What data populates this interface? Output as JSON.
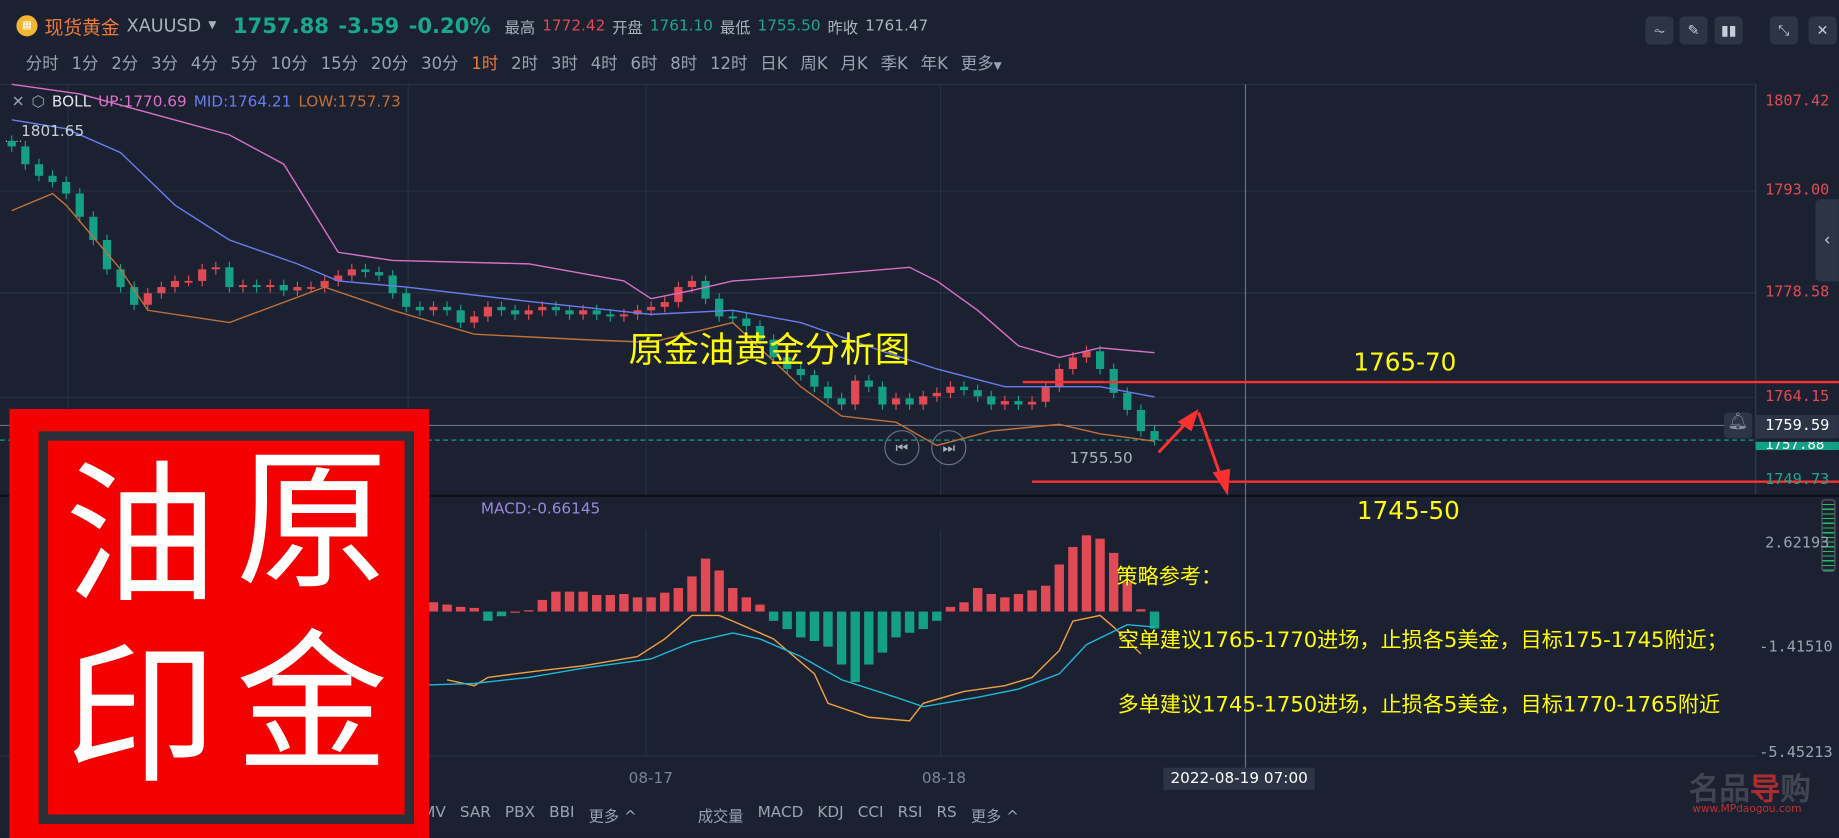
{
  "header": {
    "name": "现货黄金",
    "symbol": "XAUUSD",
    "price": "1757.88",
    "change": "-3.59",
    "change_pct": "-0.20%",
    "high_label": "最高",
    "high": "1772.42",
    "open_label": "开盘",
    "open": "1761.10",
    "low_label": "最低",
    "low": "1755.50",
    "prev_label": "昨收",
    "prev": "1761.47"
  },
  "timeframes": [
    "分时",
    "1分",
    "2分",
    "3分",
    "4分",
    "5分",
    "10分",
    "15分",
    "20分",
    "30分",
    "1时",
    "2时",
    "3时",
    "4时",
    "6时",
    "8时",
    "12时",
    "日K",
    "周K",
    "月K",
    "季K",
    "年K"
  ],
  "timeframe_active": "1时",
  "timeframe_more": "更多",
  "toolbar_icons": [
    "indicator-icon",
    "draw-icon",
    "candle-type-icon",
    "collapse-icon",
    "close-icon"
  ],
  "boll": {
    "name": "BOLL",
    "up": "UP:1770.69",
    "mid": "MID:1764.21",
    "low": "LOW:1757.73"
  },
  "macd_legend": "MACD:-0.66145",
  "price_axis": [
    "1807.42",
    "1793.00",
    "1778.58",
    "1764.15",
    "1749.73"
  ],
  "crosshair_price": "1759.59",
  "last_price_tag": "1757.88",
  "max_label": "1801.65",
  "min_label": "1755.50",
  "macd_axis": [
    "2.62193",
    "-1.41510",
    "-5.45213"
  ],
  "date_axis": [
    "08-17",
    "08-18"
  ],
  "crosshair_date": "2022-08-19 07:00",
  "bottom_main": [
    "MV",
    "SAR",
    "PBX",
    "BBI",
    "更多 ^"
  ],
  "bottom_sub": [
    "成交量",
    "MACD",
    "KDJ",
    "CCI",
    "RSI",
    "RS",
    "更多 ^"
  ],
  "annotations": {
    "title": "原金油黄金分析图",
    "upper": "1765-70",
    "lower": "1745-50",
    "strategy": "策略参考：",
    "short": "空单建议1765-1770进场，止损各5美金，目标175-1745附近；",
    "long": "多单建议1745-1750进场，止损各5美金，目标1770-1765附近"
  },
  "stamp": {
    "chars": [
      "油",
      "原",
      "印",
      "金"
    ]
  },
  "watermark": {
    "name": "名品导购",
    "url": "www.MPdaogou.com"
  },
  "colors": {
    "up": "#e04a55",
    "down": "#14a085",
    "boll_up": "#d970c8",
    "boll_mid": "#6a7cf0",
    "boll_low": "#c0703a",
    "dif": "#f0a040",
    "dea": "#20b8d8",
    "annotation_line": "#ff3030",
    "annotation_text": "#ffff00"
  },
  "chart_data": {
    "type": "candlestick",
    "interval": "1h",
    "closes": [
      1800.9,
      1798.3,
      1796.6,
      1795.7,
      1794.0,
      1790.6,
      1787.2,
      1782.9,
      1780.3,
      1777.7,
      1779.4,
      1780.3,
      1781.2,
      1781.2,
      1782.9,
      1783.2,
      1780.3,
      1780.6,
      1780.3,
      1780.6,
      1779.8,
      1780.3,
      1780.3,
      1781.2,
      1782.0,
      1782.9,
      1782.5,
      1782.0,
      1779.4,
      1777.4,
      1776.9,
      1777.4,
      1776.9,
      1775.1,
      1776.0,
      1777.4,
      1776.9,
      1776.3,
      1776.9,
      1777.4,
      1776.9,
      1776.3,
      1776.9,
      1776.3,
      1776.0,
      1776.3,
      1776.9,
      1777.4,
      1778.1,
      1780.3,
      1781.2,
      1778.6,
      1776.0,
      1775.7,
      1774.6,
      1772.6,
      1770.0,
      1768.3,
      1767.4,
      1765.7,
      1764.0,
      1763.1,
      1766.6,
      1765.7,
      1763.1,
      1764.0,
      1763.1,
      1764.3,
      1764.8,
      1765.7,
      1765.2,
      1764.3,
      1763.1,
      1763.6,
      1763.1,
      1763.5,
      1765.7,
      1768.3,
      1770.0,
      1770.9,
      1768.3,
      1764.8,
      1762.3,
      1759.2,
      1757.88
    ],
    "boll_up": [
      [
        0,
        1810.0
      ],
      [
        5,
        1808.6
      ],
      [
        16,
        1802.6
      ],
      [
        20,
        1798.3
      ],
      [
        24,
        1785.4
      ],
      [
        28,
        1784.2
      ],
      [
        38,
        1783.7
      ],
      [
        45,
        1781.2
      ],
      [
        47,
        1778.6
      ],
      [
        50,
        1779.8
      ],
      [
        53,
        1781.2
      ],
      [
        59,
        1782.0
      ],
      [
        66,
        1783.2
      ],
      [
        68,
        1781.2
      ],
      [
        71,
        1776.9
      ],
      [
        74,
        1771.7
      ],
      [
        77,
        1770.0
      ],
      [
        80,
        1771.4
      ],
      [
        84,
        1770.69
      ]
    ],
    "boll_mid": [
      [
        0,
        1804.8
      ],
      [
        4,
        1803.5
      ],
      [
        8,
        1800.0
      ],
      [
        12,
        1792.3
      ],
      [
        16,
        1787.2
      ],
      [
        21,
        1783.7
      ],
      [
        24,
        1781.2
      ],
      [
        29,
        1780.3
      ],
      [
        38,
        1778.2
      ],
      [
        47,
        1776.3
      ],
      [
        53,
        1776.9
      ],
      [
        58,
        1775.1
      ],
      [
        64,
        1770.9
      ],
      [
        68,
        1768.3
      ],
      [
        73,
        1765.7
      ],
      [
        80,
        1765.7
      ],
      [
        84,
        1764.21
      ]
    ],
    "boll_low": [
      [
        0,
        1791.5
      ],
      [
        3,
        1794.0
      ],
      [
        4,
        1792.3
      ],
      [
        8,
        1782.9
      ],
      [
        10,
        1776.9
      ],
      [
        16,
        1775.1
      ],
      [
        23,
        1780.3
      ],
      [
        28,
        1776.9
      ],
      [
        34,
        1773.4
      ],
      [
        42,
        1772.6
      ],
      [
        47,
        1772.2
      ],
      [
        53,
        1775.1
      ],
      [
        58,
        1765.7
      ],
      [
        61,
        1761.4
      ],
      [
        65,
        1760.5
      ],
      [
        68,
        1757.1
      ],
      [
        72,
        1759.2
      ],
      [
        77,
        1760.2
      ],
      [
        80,
        1758.8
      ],
      [
        84,
        1757.73
      ]
    ],
    "macd_hist_start": 31,
    "macd_hist": [
      0.36,
      0.27,
      0.18,
      0.14,
      -0.36,
      -0.18,
      0,
      0.05,
      0.45,
      0.77,
      0.77,
      0.77,
      0.64,
      0.64,
      0.68,
      0.55,
      0.55,
      0.73,
      0.91,
      1.36,
      2.05,
      1.59,
      0.91,
      0.55,
      0.27,
      -0.36,
      -0.68,
      -1.0,
      -1.14,
      -1.36,
      -2.05,
      -2.73,
      -2.05,
      -1.59,
      -1.0,
      -0.82,
      -0.68,
      -0.36,
      0.18,
      0.36,
      0.91,
      0.68,
      0.55,
      0.68,
      0.82,
      1.0,
      1.82,
      2.5,
      2.95,
      2.82,
      2.27,
      1.14,
      0.09,
      -0.66
    ],
    "dif": [
      [
        32,
        -2.64
      ],
      [
        34,
        -2.87
      ],
      [
        35,
        -2.55
      ],
      [
        37,
        -2.41
      ],
      [
        39,
        -2.28
      ],
      [
        42,
        -2.1
      ],
      [
        46,
        -1.74
      ],
      [
        48,
        -1.06
      ],
      [
        50,
        -0.15
      ],
      [
        52,
        -0.15
      ],
      [
        53,
        -0.37
      ],
      [
        56,
        -1.06
      ],
      [
        59,
        -2.41
      ],
      [
        60,
        -3.55
      ],
      [
        63,
        -4.09
      ],
      [
        66,
        -4.23
      ],
      [
        67,
        -3.55
      ],
      [
        70,
        -3.09
      ],
      [
        73,
        -2.87
      ],
      [
        75,
        -2.55
      ],
      [
        77,
        -1.51
      ],
      [
        78,
        -0.37
      ],
      [
        80,
        -0.15
      ],
      [
        81,
        -0.6
      ],
      [
        83,
        -1.64
      ]
    ],
    "dea": [
      [
        29,
        -2.87
      ],
      [
        34,
        -2.78
      ],
      [
        38,
        -2.55
      ],
      [
        42,
        -2.19
      ],
      [
        47,
        -1.83
      ],
      [
        50,
        -1.19
      ],
      [
        53,
        -0.83
      ],
      [
        55,
        -1.06
      ],
      [
        58,
        -1.74
      ],
      [
        61,
        -2.64
      ],
      [
        65,
        -3.32
      ],
      [
        67,
        -3.68
      ],
      [
        71,
        -3.32
      ],
      [
        74,
        -3.0
      ],
      [
        77,
        -2.41
      ],
      [
        79,
        -1.28
      ],
      [
        82,
        -0.51
      ],
      [
        84,
        -0.6
      ]
    ],
    "price_range": [
      1749.73,
      1807.42
    ],
    "macd_range": [
      -5.45213,
      2.62193
    ],
    "levels": [
      1765,
      1750
    ]
  }
}
